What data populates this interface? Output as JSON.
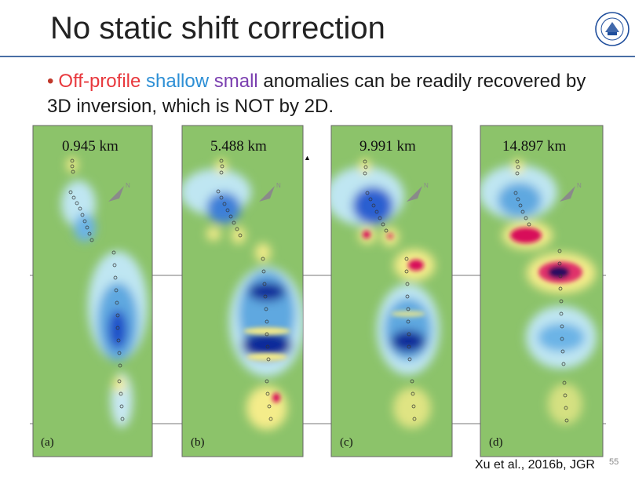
{
  "slide": {
    "title": "No static shift correction",
    "bullet_parts": [
      {
        "text": "Off-profile",
        "color": "#e8383d"
      },
      {
        "text": "shallow",
        "color": "#2d8fd5"
      },
      {
        "text": "small",
        "color": "#7b3fb0"
      },
      {
        "text": "anomalies can be readily recovered by 3D inversion, which is NOT by 2D.",
        "color": "#1a1a1a"
      }
    ],
    "citation": "Xu et al., 2016b, JGR",
    "page_number": "55"
  },
  "panels": [
    {
      "depth": "0.945 km",
      "label": "(a)"
    },
    {
      "depth": "5.488 km",
      "label": "(b)"
    },
    {
      "depth": "9.991 km",
      "label": "(c)"
    },
    {
      "depth": "14.897 km",
      "label": "(d)"
    }
  ],
  "colors": {
    "background_green": "#8cc36a",
    "title_rule": "#4a6fa5",
    "conductive_blue": "#0a2a9a",
    "resistive_red": "#d8105a"
  }
}
